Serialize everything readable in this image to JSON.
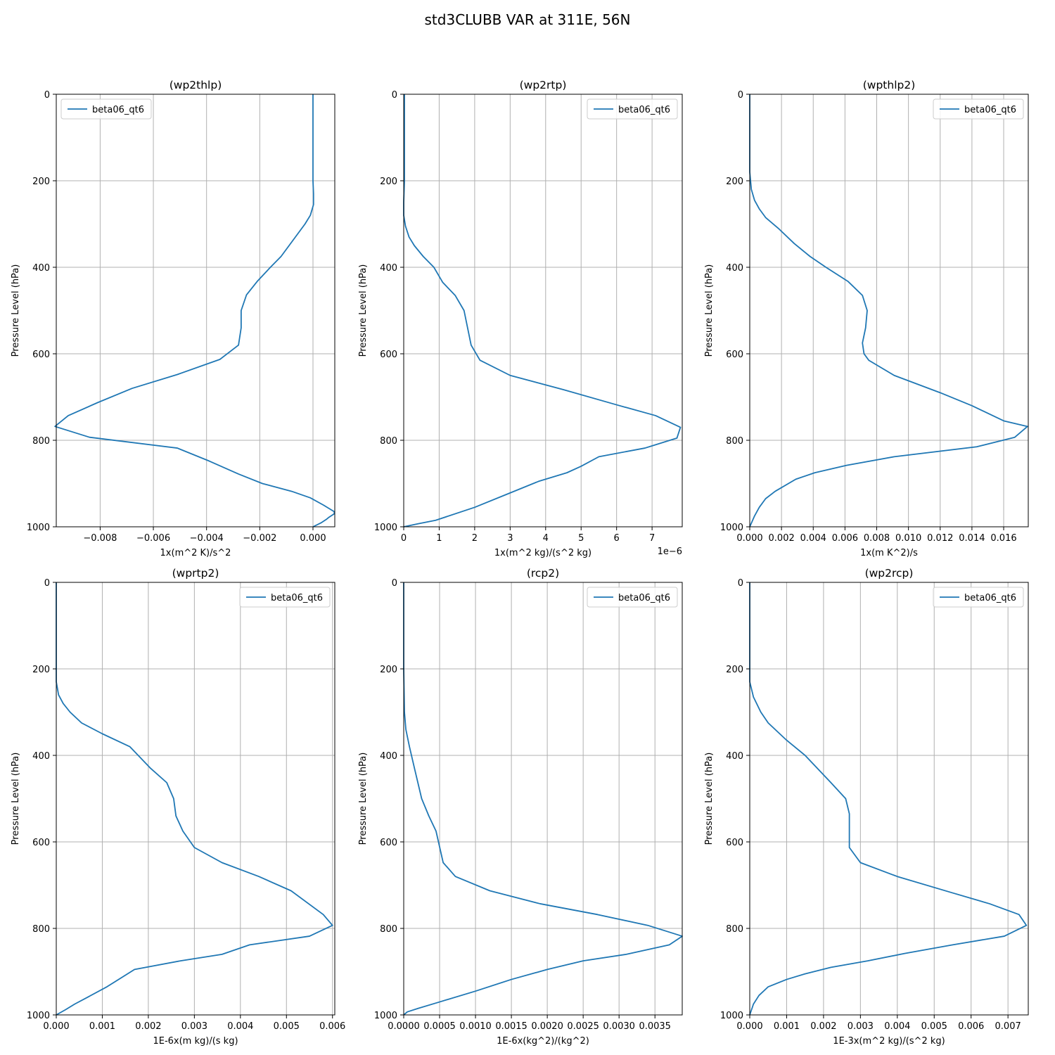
{
  "figure_title": "std3CLUBB VAR at 311E, 56N",
  "colors": {
    "line": "#1f77b4",
    "grid": "#b0b0b0",
    "axes": "#000000"
  },
  "chart_data": [
    {
      "type": "line",
      "title": "(wp2thlp)",
      "xlabel": "1x(m^2 K)/s^2",
      "ylabel": "Pressure Level (hPa)",
      "xlim": [
        -0.00965,
        0.00082
      ],
      "ylim": [
        1000,
        0
      ],
      "x_ticks": [
        -0.008,
        -0.006,
        -0.004,
        -0.002,
        0.0
      ],
      "x_tick_labels": [
        "−0.008",
        "−0.006",
        "−0.004",
        "−0.002",
        "0.000"
      ],
      "y_ticks": [
        0,
        200,
        400,
        600,
        800,
        1000
      ],
      "y_tick_labels": [
        "0",
        "200",
        "400",
        "600",
        "800",
        "1000"
      ],
      "offset_text": "",
      "grid": true,
      "legend": {
        "labels": [
          "beta06_qt6"
        ],
        "position": "upper left"
      },
      "series": [
        {
          "name": "beta06_qt6",
          "x": [
            0.0,
            0.0,
            0.0,
            0.0,
            0.0,
            2e-05,
            2e-05,
            -0.0001,
            -0.0003,
            -0.0006,
            -0.0009,
            -0.0012,
            -0.0016,
            -0.0021,
            -0.0025,
            -0.0027,
            -0.0027,
            -0.0028,
            -0.0035,
            -0.0051,
            -0.0068,
            -0.0081,
            -0.0092,
            -0.0097,
            -0.0084,
            -0.0051,
            -0.0039,
            -0.0028,
            -0.0019,
            -0.0008,
            -0.0001,
            0.0004,
            0.0008,
            0.0008,
            0.0006,
            0.0005,
            0.0003,
            0.0
          ],
          "y": [
            0,
            50,
            100,
            150,
            200,
            230,
            255,
            280,
            300,
            325,
            350,
            375,
            400,
            433,
            464,
            500,
            540,
            580,
            613,
            648,
            680,
            713,
            743,
            768,
            793,
            818,
            848,
            878,
            900,
            918,
            933,
            950,
            965,
            970,
            978,
            983,
            991,
            1000
          ]
        }
      ]
    },
    {
      "type": "line",
      "title": "(wp2rtp)",
      "xlabel": "1x(m^2 kg)/(s^2 kg)",
      "ylabel": "Pressure Level (hPa)",
      "xlim": [
        0,
        7.85e-06
      ],
      "ylim": [
        1000,
        0
      ],
      "x_ticks": [
        0,
        1e-06,
        2e-06,
        3e-06,
        4e-06,
        5e-06,
        6e-06,
        7e-06
      ],
      "x_tick_labels": [
        "0",
        "1",
        "2",
        "3",
        "4",
        "5",
        "6",
        "7"
      ],
      "y_ticks": [
        0,
        200,
        400,
        600,
        800,
        1000
      ],
      "y_tick_labels": [
        "0",
        "200",
        "400",
        "600",
        "800",
        "1000"
      ],
      "offset_text": "1e−6",
      "grid": true,
      "legend": {
        "labels": [
          "beta06_qt6"
        ],
        "position": "upper right"
      },
      "series": [
        {
          "name": "beta06_qt6",
          "x": [
            2e-08,
            2e-08,
            2e-08,
            0.0,
            0.0,
            5e-08,
            1.5e-07,
            3e-07,
            5.5e-07,
            8.5e-07,
            1.1e-06,
            1.45e-06,
            1.7e-06,
            1.8e-06,
            1.9e-06,
            2.15e-06,
            3e-06,
            4.5e-06,
            6e-06,
            7.1e-06,
            7.8e-06,
            7.7e-06,
            6.8e-06,
            5.5e-06,
            5e-06,
            4.6e-06,
            3.8e-06,
            2.9e-06,
            2e-06,
            9e-07,
            4e-07,
            0.0
          ],
          "y": [
            0,
            100,
            200,
            250,
            280,
            305,
            330,
            350,
            375,
            400,
            435,
            465,
            500,
            540,
            580,
            615,
            650,
            683,
            718,
            743,
            770,
            795,
            818,
            838,
            860,
            875,
            895,
            925,
            955,
            985,
            993,
            1000
          ]
        }
      ]
    },
    {
      "type": "line",
      "title": "(wpthlp2)",
      "xlabel": "1x(m K^2)/s",
      "ylabel": "Pressure Level (hPa)",
      "xlim": [
        0,
        0.01755
      ],
      "ylim": [
        1000,
        0
      ],
      "x_ticks": [
        0.0,
        0.002,
        0.004,
        0.006,
        0.008,
        0.01,
        0.012,
        0.014,
        0.016
      ],
      "x_tick_labels": [
        "0.000",
        "0.002",
        "0.004",
        "0.006",
        "0.008",
        "0.010",
        "0.012",
        "0.014",
        "0.016"
      ],
      "y_ticks": [
        0,
        200,
        400,
        600,
        800,
        1000
      ],
      "y_tick_labels": [
        "0",
        "200",
        "400",
        "600",
        "800",
        "1000"
      ],
      "offset_text": "",
      "grid": true,
      "legend": {
        "labels": [
          "beta06_qt6"
        ],
        "position": "upper right"
      },
      "series": [
        {
          "name": "beta06_qt6",
          "x": [
            0.0,
            0.0,
            0.0,
            0.0001,
            0.0003,
            0.0006,
            0.001,
            0.0018,
            0.0028,
            0.0038,
            0.0048,
            0.0062,
            0.0071,
            0.0074,
            0.0073,
            0.0071,
            0.0072,
            0.0075,
            0.0091,
            0.012,
            0.014,
            0.016,
            0.0175,
            0.0167,
            0.0143,
            0.0091,
            0.0061,
            0.0041,
            0.0029,
            0.0016,
            0.001,
            0.0006,
            0.0003,
            0.0
          ],
          "y": [
            0,
            100,
            180,
            220,
            245,
            265,
            285,
            310,
            345,
            375,
            400,
            433,
            465,
            500,
            540,
            575,
            600,
            615,
            650,
            690,
            720,
            755,
            768,
            793,
            815,
            838,
            858,
            875,
            890,
            918,
            935,
            955,
            975,
            1000
          ]
        }
      ]
    },
    {
      "type": "line",
      "title": "(wprtp2)",
      "xlabel": "1E-6x(m kg)/(s kg)",
      "ylabel": "Pressure Level (hPa)",
      "xlim": [
        0,
        0.00605
      ],
      "ylim": [
        1000,
        0
      ],
      "x_ticks": [
        0.0,
        0.001,
        0.002,
        0.003,
        0.004,
        0.005,
        0.006
      ],
      "x_tick_labels": [
        "0.000",
        "0.001",
        "0.002",
        "0.003",
        "0.004",
        "0.005",
        "0.006"
      ],
      "y_ticks": [
        0,
        200,
        400,
        600,
        800,
        1000
      ],
      "y_tick_labels": [
        "0",
        "200",
        "400",
        "600",
        "800",
        "1000"
      ],
      "offset_text": "",
      "grid": true,
      "legend": {
        "labels": [
          "beta06_qt6"
        ],
        "position": "upper right"
      },
      "series": [
        {
          "name": "beta06_qt6",
          "x": [
            0.0,
            0.0,
            0.0,
            5e-05,
            0.00015,
            0.0003,
            0.00055,
            0.001,
            0.0016,
            0.00205,
            0.0024,
            0.00255,
            0.0026,
            0.00275,
            0.003,
            0.0036,
            0.0044,
            0.0051,
            0.0058,
            0.006,
            0.0055,
            0.0042,
            0.0036,
            0.0027,
            0.0017,
            0.0011,
            0.0007,
            0.0004,
            0.0002,
            0.0
          ],
          "y": [
            0,
            100,
            230,
            260,
            280,
            300,
            325,
            350,
            380,
            430,
            463,
            500,
            540,
            575,
            613,
            648,
            680,
            713,
            768,
            793,
            818,
            838,
            860,
            875,
            895,
            935,
            958,
            975,
            988,
            1000
          ]
        }
      ]
    },
    {
      "type": "line",
      "title": "(rcp2)",
      "xlabel": "1E-6x(kg^2)/(kg^2)",
      "ylabel": "Pressure Level (hPa)",
      "xlim": [
        0,
        0.00388
      ],
      "ylim": [
        1000,
        0
      ],
      "x_ticks": [
        0.0,
        0.0005,
        0.001,
        0.0015,
        0.002,
        0.0025,
        0.003,
        0.0035
      ],
      "x_tick_labels": [
        "0.0000",
        "0.0005",
        "0.0010",
        "0.0015",
        "0.0020",
        "0.0025",
        "0.0030",
        "0.0035"
      ],
      "y_ticks": [
        0,
        200,
        400,
        600,
        800,
        1000
      ],
      "y_tick_labels": [
        "0",
        "200",
        "400",
        "600",
        "800",
        "1000"
      ],
      "offset_text": "",
      "grid": true,
      "legend": {
        "labels": [
          "beta06_qt6"
        ],
        "position": "upper right"
      },
      "series": [
        {
          "name": "beta06_qt6",
          "x": [
            0.0,
            0.0,
            1e-05,
            3e-05,
            8e-05,
            0.00015,
            0.00025,
            0.00035,
            0.00045,
            0.00055,
            0.00072,
            0.0012,
            0.0019,
            0.0027,
            0.0034,
            0.00388,
            0.0037,
            0.0031,
            0.0025,
            0.002,
            0.0015,
            0.001,
            0.0005,
            0.0002,
            5e-05,
            0.0
          ],
          "y": [
            0,
            200,
            300,
            340,
            380,
            430,
            500,
            540,
            575,
            648,
            680,
            713,
            743,
            768,
            793,
            818,
            838,
            860,
            875,
            895,
            918,
            945,
            970,
            985,
            993,
            1000
          ]
        }
      ]
    },
    {
      "type": "line",
      "title": "(wp2rcp)",
      "xlabel": "1E-3x(m^2 kg)/(s^2 kg)",
      "ylabel": "Pressure Level (hPa)",
      "xlim": [
        0,
        0.00755
      ],
      "ylim": [
        1000,
        0
      ],
      "x_ticks": [
        0.0,
        0.001,
        0.002,
        0.003,
        0.004,
        0.005,
        0.006,
        0.007
      ],
      "x_tick_labels": [
        "0.000",
        "0.001",
        "0.002",
        "0.003",
        "0.004",
        "0.005",
        "0.006",
        "0.007"
      ],
      "y_ticks": [
        0,
        200,
        400,
        600,
        800,
        1000
      ],
      "y_tick_labels": [
        "0",
        "200",
        "400",
        "600",
        "800",
        "1000"
      ],
      "offset_text": "",
      "grid": true,
      "legend": {
        "labels": [
          "beta06_qt6"
        ],
        "position": "upper right"
      },
      "series": [
        {
          "name": "beta06_qt6",
          "x": [
            0.0,
            0.0,
            0.0,
            0.0001,
            0.0003,
            0.0005,
            0.001,
            0.0015,
            0.0022,
            0.0026,
            0.0027,
            0.0027,
            0.0027,
            0.003,
            0.004,
            0.0055,
            0.0065,
            0.0073,
            0.0075,
            0.0069,
            0.0055,
            0.0042,
            0.0032,
            0.0022,
            0.0015,
            0.001,
            0.0005,
            0.00025,
            0.0001,
            0.0
          ],
          "y": [
            0,
            100,
            230,
            265,
            300,
            325,
            365,
            400,
            463,
            500,
            535,
            575,
            613,
            648,
            680,
            718,
            743,
            768,
            793,
            818,
            838,
            858,
            875,
            890,
            905,
            918,
            935,
            955,
            975,
            1000
          ]
        }
      ]
    }
  ]
}
